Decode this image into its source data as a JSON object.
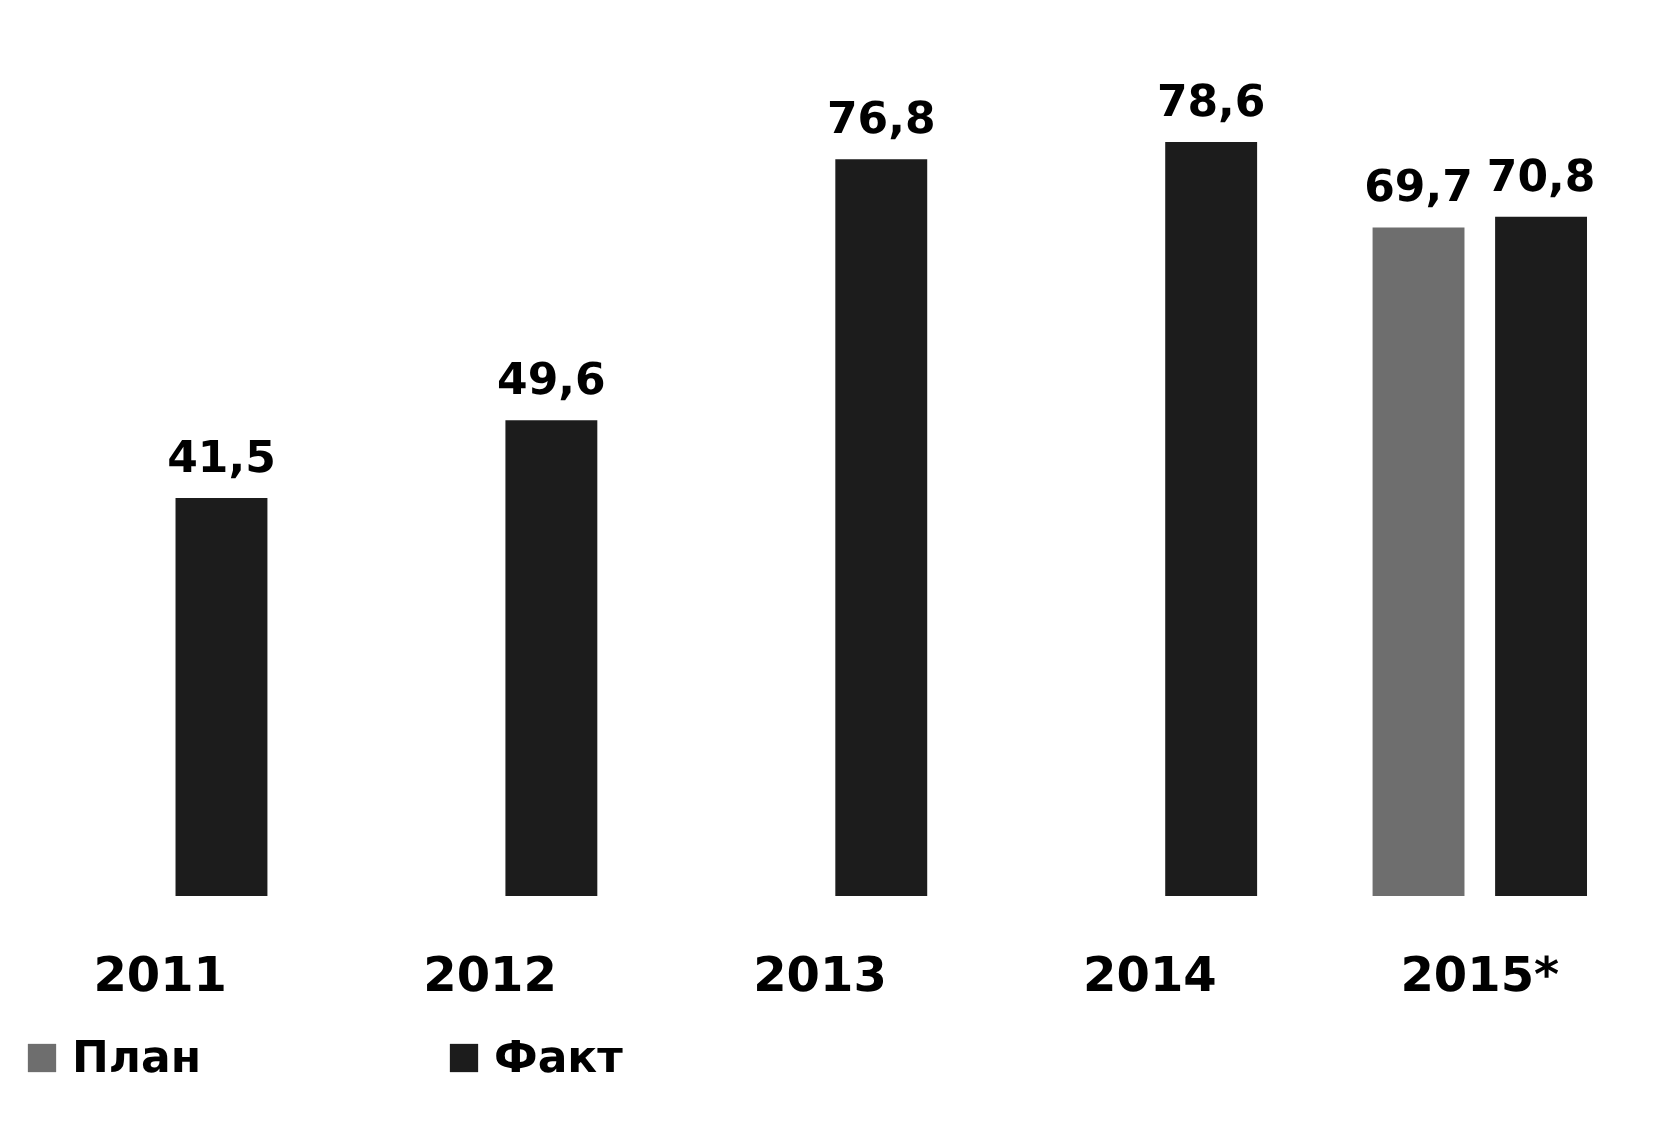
{
  "chart_data": {
    "type": "bar",
    "categories": [
      "2011",
      "2012",
      "2013",
      "2014",
      "2015*"
    ],
    "series": [
      {
        "name": "План",
        "color": "#6e6e6e",
        "values": [
          null,
          null,
          null,
          null,
          69.7
        ],
        "value_labels": [
          null,
          null,
          null,
          null,
          "69,7"
        ]
      },
      {
        "name": "Факт",
        "color": "#1c1c1c",
        "values": [
          41.5,
          49.6,
          76.8,
          78.6,
          70.8
        ],
        "value_labels": [
          "41,5",
          "49,6",
          "76,8",
          "78,6",
          "70,8"
        ]
      }
    ],
    "legend": "bottom",
    "grid": false
  }
}
